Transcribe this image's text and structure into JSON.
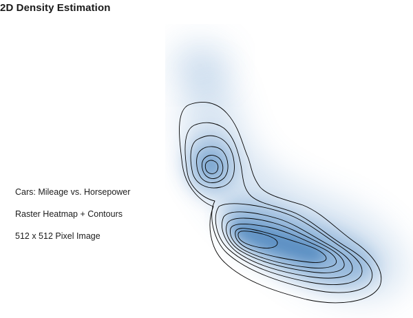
{
  "title": "2D Density Estimation",
  "captions": {
    "line1": "Cars: Mileage vs. Horsepower",
    "line2": "Raster Heatmap + Contours",
    "line3": "512 x 512 Pixel Image"
  },
  "chart_data": {
    "type": "heatmap",
    "variant": "2d-density-raster-with-contours",
    "colorscale": {
      "low": "#ffffff",
      "high": "#2e6fb0"
    },
    "contour_color": "#000000",
    "contour_levels": 9,
    "modes": [
      {
        "peak": "secondary",
        "relative_density": 0.55
      },
      {
        "peak": "primary",
        "relative_density": 1.0
      },
      {
        "peak": "shoulder",
        "relative_density": 0.8
      }
    ],
    "axes_visible": false,
    "legend": "none"
  }
}
